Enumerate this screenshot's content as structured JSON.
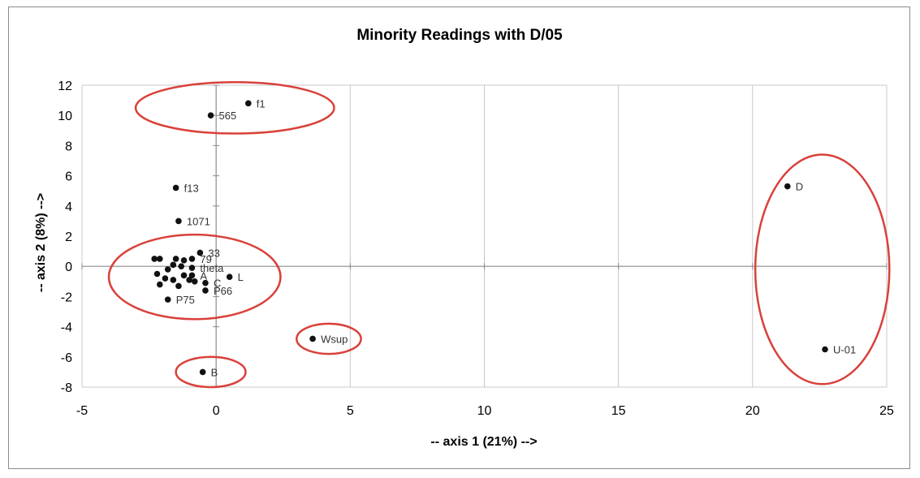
{
  "chart_data": {
    "type": "scatter",
    "title": "Minority Readings with D/05",
    "xlabel": "-- axis 1 (21%) -->",
    "ylabel": "-- axis 2 (8%) -->",
    "xlim": [
      -5,
      25
    ],
    "ylim": [
      -8,
      12
    ],
    "xticks": [
      -5,
      0,
      5,
      10,
      15,
      20,
      25
    ],
    "yticks": [
      -8,
      -6,
      -4,
      -2,
      0,
      2,
      4,
      6,
      8,
      10,
      12
    ],
    "grid": "vertical",
    "legend": "none",
    "marker_color": "#111111",
    "highlight_color": "#d9403a",
    "points": [
      {
        "label": "f1",
        "x": 1.2,
        "y": 10.8
      },
      {
        "label": "565",
        "x": -0.2,
        "y": 10.0
      },
      {
        "label": "f13",
        "x": -1.5,
        "y": 5.2
      },
      {
        "label": "1071",
        "x": -1.4,
        "y": 3.0
      },
      {
        "label": "33",
        "x": -0.6,
        "y": 0.9
      },
      {
        "label": "79",
        "x": -0.9,
        "y": 0.5
      },
      {
        "label": "theta",
        "x": -0.9,
        "y": -0.1
      },
      {
        "label": "L",
        "x": 0.5,
        "y": -0.7
      },
      {
        "label": "A",
        "x": -0.9,
        "y": -0.6
      },
      {
        "label": "C",
        "x": -0.4,
        "y": -1.1
      },
      {
        "label": "P66",
        "x": -0.4,
        "y": -1.6
      },
      {
        "label": "P75",
        "x": -1.8,
        "y": -2.2
      },
      {
        "label": "",
        "x": -2.3,
        "y": 0.5
      },
      {
        "label": "",
        "x": -2.1,
        "y": 0.5
      },
      {
        "label": "",
        "x": -1.5,
        "y": 0.5
      },
      {
        "label": "",
        "x": -1.2,
        "y": 0.4
      },
      {
        "label": "",
        "x": -1.6,
        "y": 0.1
      },
      {
        "label": "",
        "x": -1.3,
        "y": 0.0
      },
      {
        "label": "",
        "x": -1.8,
        "y": -0.2
      },
      {
        "label": "",
        "x": -2.2,
        "y": -0.5
      },
      {
        "label": "",
        "x": -1.9,
        "y": -0.8
      },
      {
        "label": "",
        "x": -1.6,
        "y": -0.9
      },
      {
        "label": "",
        "x": -1.2,
        "y": -0.6
      },
      {
        "label": "",
        "x": -1.0,
        "y": -0.9
      },
      {
        "label": "",
        "x": -2.1,
        "y": -1.2
      },
      {
        "label": "",
        "x": -1.4,
        "y": -1.3
      },
      {
        "label": "",
        "x": -0.8,
        "y": -1.0
      },
      {
        "label": "Wsup",
        "x": 3.6,
        "y": -4.8
      },
      {
        "label": "B",
        "x": -0.5,
        "y": -7.0
      },
      {
        "label": "D",
        "x": 21.3,
        "y": 5.3
      },
      {
        "label": "U-01",
        "x": 22.7,
        "y": -5.5
      }
    ],
    "highlights": [
      {
        "name": "top-group",
        "cx": 0.7,
        "cy": 10.5,
        "rx": 3.7,
        "ry": 1.7
      },
      {
        "name": "cluster-group",
        "cx": -0.8,
        "cy": -0.7,
        "rx": 3.2,
        "ry": 2.8
      },
      {
        "name": "wsup-group",
        "cx": 4.2,
        "cy": -4.8,
        "rx": 1.2,
        "ry": 1.0
      },
      {
        "name": "b-group",
        "cx": -0.2,
        "cy": -7.0,
        "rx": 1.3,
        "ry": 1.0
      },
      {
        "name": "right-group",
        "cx": 22.6,
        "cy": -0.2,
        "rx": 2.5,
        "ry": 7.6
      }
    ]
  }
}
